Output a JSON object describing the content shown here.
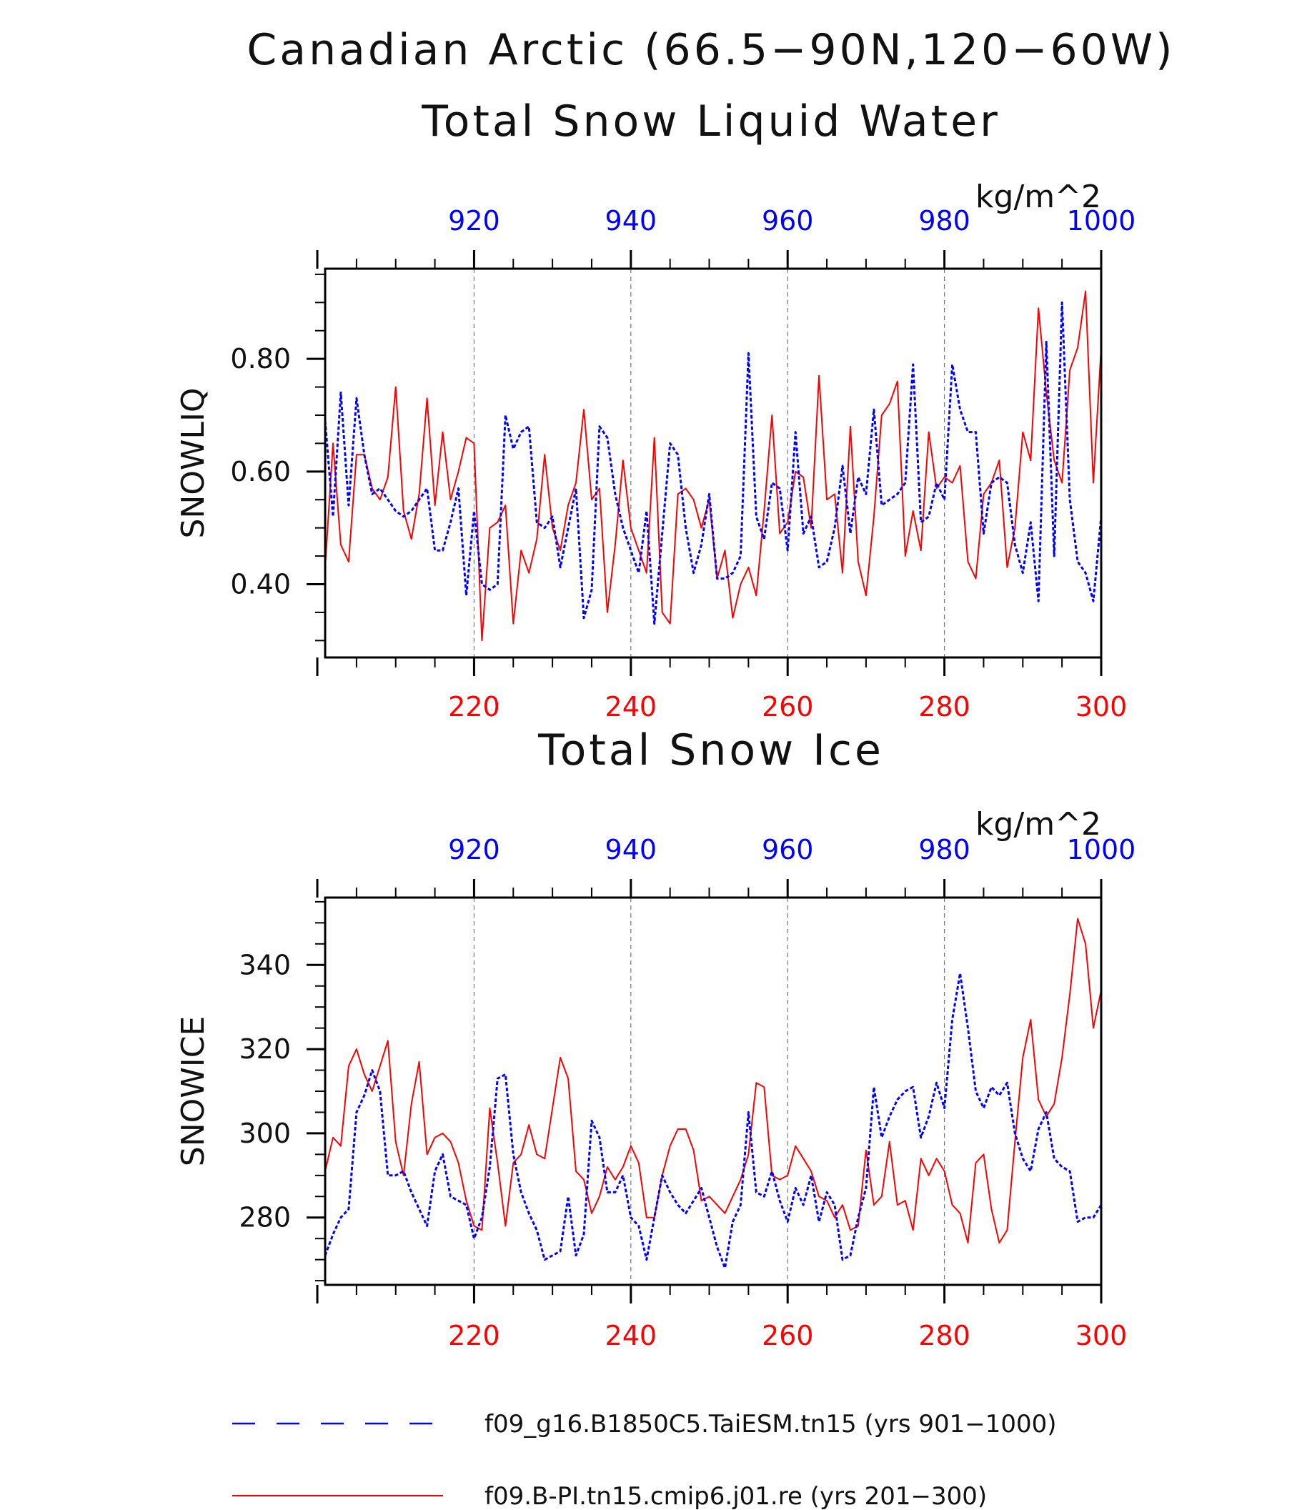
{
  "header": {
    "title_line1": "Canadian Arctic (66.5−90N,120−60W)"
  },
  "colors": {
    "red_series": "#ff0000",
    "blue_series": "#0000ff",
    "axis": "#000000"
  },
  "legend": {
    "items": [
      {
        "label": "f09_g16.B1850C5.TaiESM.tn15 (yrs 901−1000)",
        "color": "#0000ff",
        "style": "dashed"
      },
      {
        "label": "f09.B-PI.tn15.cmip6.j01.re (yrs 201−300)",
        "color": "#ff0000",
        "style": "solid"
      }
    ]
  },
  "chart_data": [
    {
      "type": "line",
      "title": "Total Snow Liquid Water",
      "ylabel": "SNOWLIQ",
      "units": "kg/m^2",
      "ylim": [
        0.27,
        0.96
      ],
      "yticks": [
        0.4,
        0.6,
        0.8
      ],
      "ytick_labels": [
        "0.40",
        "0.60",
        "0.80"
      ],
      "bottom_axis": {
        "range": [
          201,
          300
        ],
        "ticks": [
          220,
          240,
          260,
          280,
          300
        ],
        "color": "#ff0000"
      },
      "top_axis": {
        "range": [
          901,
          1000
        ],
        "ticks": [
          920,
          940,
          960,
          980,
          1000
        ],
        "color": "#0000ff"
      },
      "grid": "vertical dashed at major ticks",
      "series": [
        {
          "name": "f09.B-PI.tn15.cmip6.j01.re (yrs 201−300)",
          "color": "#ff0000",
          "style": "solid",
          "x_start": 201,
          "values": [
            0.43,
            0.65,
            0.47,
            0.44,
            0.63,
            0.63,
            0.57,
            0.55,
            0.59,
            0.75,
            0.53,
            0.48,
            0.56,
            0.73,
            0.54,
            0.67,
            0.55,
            0.6,
            0.66,
            0.65,
            0.3,
            0.5,
            0.51,
            0.54,
            0.33,
            0.46,
            0.42,
            0.48,
            0.63,
            0.5,
            0.46,
            0.54,
            0.58,
            0.71,
            0.55,
            0.57,
            0.35,
            0.47,
            0.62,
            0.5,
            0.46,
            0.42,
            0.66,
            0.35,
            0.33,
            0.56,
            0.57,
            0.55,
            0.5,
            0.55,
            0.41,
            0.46,
            0.34,
            0.4,
            0.43,
            0.38,
            0.53,
            0.7,
            0.49,
            0.51,
            0.6,
            0.59,
            0.5,
            0.77,
            0.55,
            0.56,
            0.42,
            0.68,
            0.44,
            0.38,
            0.52,
            0.7,
            0.72,
            0.76,
            0.45,
            0.53,
            0.46,
            0.67,
            0.57,
            0.59,
            0.58,
            0.61,
            0.44,
            0.41,
            0.56,
            0.58,
            0.62,
            0.43,
            0.5,
            0.67,
            0.62,
            0.89,
            0.74,
            0.62,
            0.58,
            0.78,
            0.82,
            0.92,
            0.58,
            0.82
          ]
        },
        {
          "name": "f09_g16.B1850C5.TaiESM.tn15 (yrs 901−1000)",
          "color": "#0000ff",
          "style": "dashed",
          "x_start": 901,
          "values": [
            0.69,
            0.52,
            0.74,
            0.54,
            0.73,
            0.63,
            0.56,
            0.57,
            0.55,
            0.53,
            0.52,
            0.53,
            0.55,
            0.57,
            0.46,
            0.46,
            0.51,
            0.57,
            0.38,
            0.53,
            0.4,
            0.39,
            0.4,
            0.7,
            0.64,
            0.67,
            0.68,
            0.51,
            0.5,
            0.52,
            0.43,
            0.5,
            0.57,
            0.34,
            0.39,
            0.68,
            0.66,
            0.56,
            0.5,
            0.46,
            0.42,
            0.53,
            0.33,
            0.49,
            0.65,
            0.63,
            0.5,
            0.42,
            0.47,
            0.56,
            0.41,
            0.41,
            0.42,
            0.45,
            0.81,
            0.52,
            0.48,
            0.58,
            0.57,
            0.46,
            0.67,
            0.49,
            0.52,
            0.43,
            0.44,
            0.5,
            0.61,
            0.49,
            0.59,
            0.56,
            0.71,
            0.54,
            0.55,
            0.56,
            0.58,
            0.79,
            0.51,
            0.52,
            0.58,
            0.55,
            0.79,
            0.71,
            0.67,
            0.67,
            0.49,
            0.58,
            0.59,
            0.58,
            0.47,
            0.42,
            0.51,
            0.37,
            0.83,
            0.45,
            0.9,
            0.55,
            0.44,
            0.42,
            0.37,
            0.52
          ]
        }
      ]
    },
    {
      "type": "line",
      "title": "Total Snow Ice",
      "ylabel": "SNOWICE",
      "units": "kg/m^2",
      "ylim": [
        264,
        356
      ],
      "yticks": [
        280,
        300,
        320,
        340
      ],
      "ytick_labels": [
        "280",
        "300",
        "320",
        "340"
      ],
      "bottom_axis": {
        "range": [
          201,
          300
        ],
        "ticks": [
          220,
          240,
          260,
          280,
          300
        ],
        "color": "#ff0000"
      },
      "top_axis": {
        "range": [
          901,
          1000
        ],
        "ticks": [
          920,
          940,
          960,
          980,
          1000
        ],
        "color": "#0000ff"
      },
      "grid": "vertical dashed at major ticks",
      "series": [
        {
          "name": "f09.B-PI.tn15.cmip6.j01.re (yrs 201−300)",
          "color": "#ff0000",
          "style": "solid",
          "x_start": 201,
          "values": [
            291,
            299,
            297,
            316,
            320,
            314,
            310,
            316,
            322,
            298,
            290,
            307,
            317,
            295,
            299,
            300,
            298,
            293,
            284,
            278,
            277,
            306,
            293,
            278,
            293,
            295,
            302,
            295,
            294,
            306,
            318,
            313,
            291,
            289,
            281,
            285,
            292,
            289,
            292,
            297,
            293,
            280,
            280,
            290,
            297,
            301,
            301,
            296,
            284,
            285,
            283,
            281,
            285,
            289,
            295,
            312,
            311,
            290,
            289,
            290,
            297,
            294,
            291,
            285,
            284,
            280,
            283,
            277,
            278,
            296,
            283,
            285,
            298,
            283,
            284,
            277,
            294,
            290,
            294,
            291,
            283,
            281,
            274,
            293,
            295,
            282,
            274,
            277,
            298,
            318,
            327,
            308,
            304,
            307,
            318,
            333,
            351,
            345,
            325,
            334
          ]
        },
        {
          "name": "f09_g16.B1850C5.TaiESM.tn15 (yrs 901−1000)",
          "color": "#0000ff",
          "style": "dashed",
          "x_start": 901,
          "values": [
            271,
            276,
            280,
            282,
            305,
            309,
            315,
            310,
            290,
            290,
            291,
            286,
            282,
            278,
            291,
            295,
            285,
            284,
            283,
            275,
            280,
            292,
            313,
            314,
            295,
            286,
            281,
            277,
            270,
            271,
            272,
            285,
            271,
            276,
            303,
            299,
            286,
            286,
            290,
            280,
            278,
            270,
            280,
            290,
            286,
            283,
            281,
            284,
            287,
            280,
            273,
            268,
            279,
            283,
            305,
            286,
            285,
            291,
            284,
            279,
            287,
            283,
            290,
            279,
            286,
            283,
            270,
            271,
            280,
            287,
            311,
            299,
            304,
            308,
            310,
            311,
            299,
            304,
            312,
            306,
            327,
            338,
            325,
            310,
            306,
            311,
            309,
            312,
            300,
            294,
            291,
            301,
            305,
            294,
            292,
            291,
            279,
            280,
            280,
            283
          ]
        }
      ]
    }
  ]
}
